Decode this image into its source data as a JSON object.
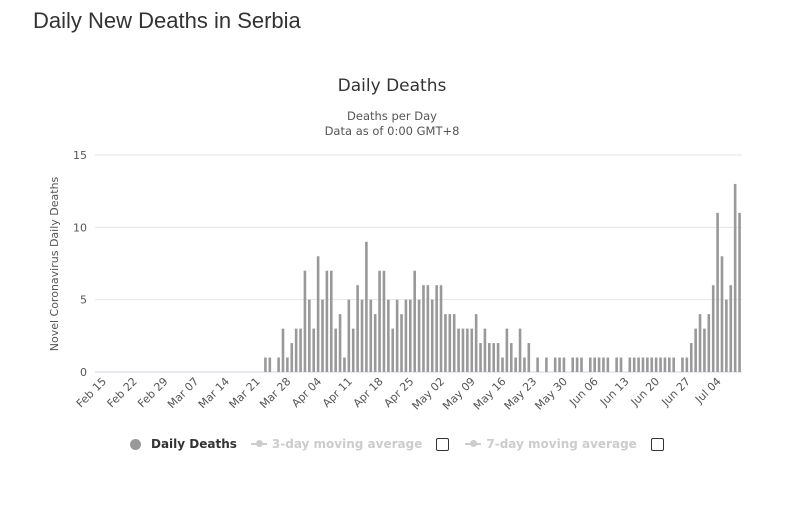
{
  "page_title": "Daily New Deaths in Serbia",
  "chart_data": {
    "type": "bar",
    "title": "Daily Deaths",
    "subtitle": [
      "Deaths per Day",
      "Data as of 0:00 GMT+8"
    ],
    "ylabel": "Novel Coronavirus Daily Deaths",
    "xlabel": "",
    "ylim": [
      0,
      15
    ],
    "yticks": [
      0,
      5,
      10,
      15
    ],
    "grid": true,
    "bar_color": "#999999",
    "categories": [
      "Feb 15",
      "Feb 16",
      "Feb 17",
      "Feb 18",
      "Feb 19",
      "Feb 20",
      "Feb 21",
      "Feb 22",
      "Feb 23",
      "Feb 24",
      "Feb 25",
      "Feb 26",
      "Feb 27",
      "Feb 28",
      "Feb 29",
      "Mar 01",
      "Mar 02",
      "Mar 03",
      "Mar 04",
      "Mar 05",
      "Mar 06",
      "Mar 07",
      "Mar 08",
      "Mar 09",
      "Mar 10",
      "Mar 11",
      "Mar 12",
      "Mar 13",
      "Mar 14",
      "Mar 15",
      "Mar 16",
      "Mar 17",
      "Mar 18",
      "Mar 19",
      "Mar 20",
      "Mar 21",
      "Mar 22",
      "Mar 23",
      "Mar 24",
      "Mar 25",
      "Mar 26",
      "Mar 27",
      "Mar 28",
      "Mar 29",
      "Mar 30",
      "Mar 31",
      "Apr 01",
      "Apr 02",
      "Apr 03",
      "Apr 04",
      "Apr 05",
      "Apr 06",
      "Apr 07",
      "Apr 08",
      "Apr 09",
      "Apr 10",
      "Apr 11",
      "Apr 12",
      "Apr 13",
      "Apr 14",
      "Apr 15",
      "Apr 16",
      "Apr 17",
      "Apr 18",
      "Apr 19",
      "Apr 20",
      "Apr 21",
      "Apr 22",
      "Apr 23",
      "Apr 24",
      "Apr 25",
      "Apr 26",
      "Apr 27",
      "Apr 28",
      "Apr 29",
      "Apr 30",
      "May 01",
      "May 02",
      "May 03",
      "May 04",
      "May 05",
      "May 06",
      "May 07",
      "May 08",
      "May 09",
      "May 10",
      "May 11",
      "May 12",
      "May 13",
      "May 14",
      "May 15",
      "May 16",
      "May 17",
      "May 18",
      "May 19",
      "May 20",
      "May 21",
      "May 22",
      "May 23",
      "May 24",
      "May 25",
      "May 26",
      "May 27",
      "May 28",
      "May 29",
      "May 30",
      "May 31",
      "Jun 01",
      "Jun 02",
      "Jun 03",
      "Jun 04",
      "Jun 05",
      "Jun 06",
      "Jun 07",
      "Jun 08",
      "Jun 09",
      "Jun 10",
      "Jun 11",
      "Jun 12",
      "Jun 13",
      "Jun 14",
      "Jun 15",
      "Jun 16",
      "Jun 17",
      "Jun 18",
      "Jun 19",
      "Jun 20",
      "Jun 21",
      "Jun 22",
      "Jun 23",
      "Jun 24",
      "Jun 25",
      "Jun 26",
      "Jun 27",
      "Jun 28",
      "Jun 29",
      "Jun 30",
      "Jul 01",
      "Jul 02",
      "Jul 03",
      "Jul 04",
      "Jul 05",
      "Jul 06",
      "Jul 07",
      "Jul 08",
      "Jul 09"
    ],
    "tick_labels": [
      "Feb 15",
      "Feb 22",
      "Feb 29",
      "Mar 07",
      "Mar 14",
      "Mar 21",
      "Mar 28",
      "Apr 04",
      "Apr 11",
      "Apr 18",
      "Apr 25",
      "May 02",
      "May 09",
      "May 16",
      "May 23",
      "May 30",
      "Jun 06",
      "Jun 13",
      "Jun 20",
      "Jun 27",
      "Jul 04"
    ],
    "series": [
      {
        "name": "Daily Deaths",
        "values": [
          0,
          0,
          0,
          0,
          0,
          0,
          0,
          0,
          0,
          0,
          0,
          0,
          0,
          0,
          0,
          0,
          0,
          0,
          0,
          0,
          0,
          0,
          0,
          0,
          0,
          0,
          0,
          0,
          0,
          0,
          0,
          0,
          0,
          0,
          0,
          0,
          0,
          1,
          1,
          0,
          1,
          3,
          1,
          2,
          3,
          3,
          7,
          5,
          3,
          8,
          5,
          7,
          7,
          3,
          4,
          1,
          5,
          3,
          6,
          5,
          9,
          5,
          4,
          7,
          7,
          5,
          3,
          5,
          4,
          5,
          5,
          7,
          5,
          6,
          6,
          5,
          6,
          6,
          4,
          4,
          4,
          3,
          3,
          3,
          3,
          4,
          2,
          3,
          2,
          2,
          2,
          1,
          3,
          2,
          1,
          3,
          1,
          2,
          0,
          1,
          0,
          1,
          0,
          1,
          1,
          1,
          0,
          1,
          1,
          1,
          0,
          1,
          1,
          1,
          1,
          1,
          0,
          1,
          1,
          0,
          1,
          1,
          1,
          1,
          1,
          1,
          1,
          1,
          1,
          1,
          1,
          0,
          1,
          1,
          2,
          3,
          4,
          3,
          4,
          6,
          11,
          8,
          5,
          6,
          13,
          11
        ]
      }
    ],
    "legend": [
      {
        "label": "Daily Deaths",
        "enabled": true
      },
      {
        "label": "3-day moving average",
        "enabled": false
      },
      {
        "label": "7-day moving average",
        "enabled": false
      }
    ],
    "legend_position": "bottom"
  }
}
